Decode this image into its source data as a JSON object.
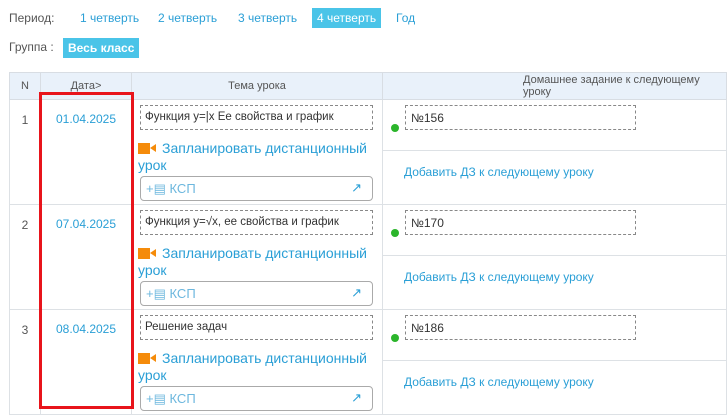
{
  "period": {
    "label": "Период:",
    "tabs": [
      {
        "label": "1 четверть",
        "active": false
      },
      {
        "label": "2 четверть",
        "active": false
      },
      {
        "label": "3 четверть",
        "active": false
      },
      {
        "label": "4 четверть",
        "active": true
      },
      {
        "label": "Год",
        "active": false
      }
    ]
  },
  "group": {
    "label": "Группа :",
    "value": "Весь класс"
  },
  "table": {
    "headers": {
      "n": "N",
      "date": "Дата>",
      "topic": "Тема урока",
      "homework": "Домашнее задание к следующему уроку"
    },
    "rows": [
      {
        "n": "1",
        "date": "01.04.2025",
        "topic": "Функция y=|x Ее свойства и график",
        "remote": "Запланировать дистанционный урок",
        "ksp": "КСП",
        "homework": "№156",
        "add_hw": "Добавить ДЗ к следующему уроку"
      },
      {
        "n": "2",
        "date": "07.04.2025",
        "topic": "Функция y=√x, ее свойства и график",
        "remote": "Запланировать дистанционный урок",
        "ksp": "КСП",
        "homework": "№170",
        "add_hw": "Добавить ДЗ к следующему уроку"
      },
      {
        "n": "3",
        "date": "08.04.2025",
        "topic": "Решение задач",
        "remote": "Запланировать дистанционный урок",
        "ksp": "КСП",
        "homework": "№186",
        "add_hw": "Добавить ДЗ к следующему уроку"
      }
    ]
  },
  "colors": {
    "accent": "#4ac4e8",
    "link": "#2a9fd6",
    "highlight": "#e8141b",
    "status": "#2bb52b",
    "camera": "#f58b0a"
  }
}
